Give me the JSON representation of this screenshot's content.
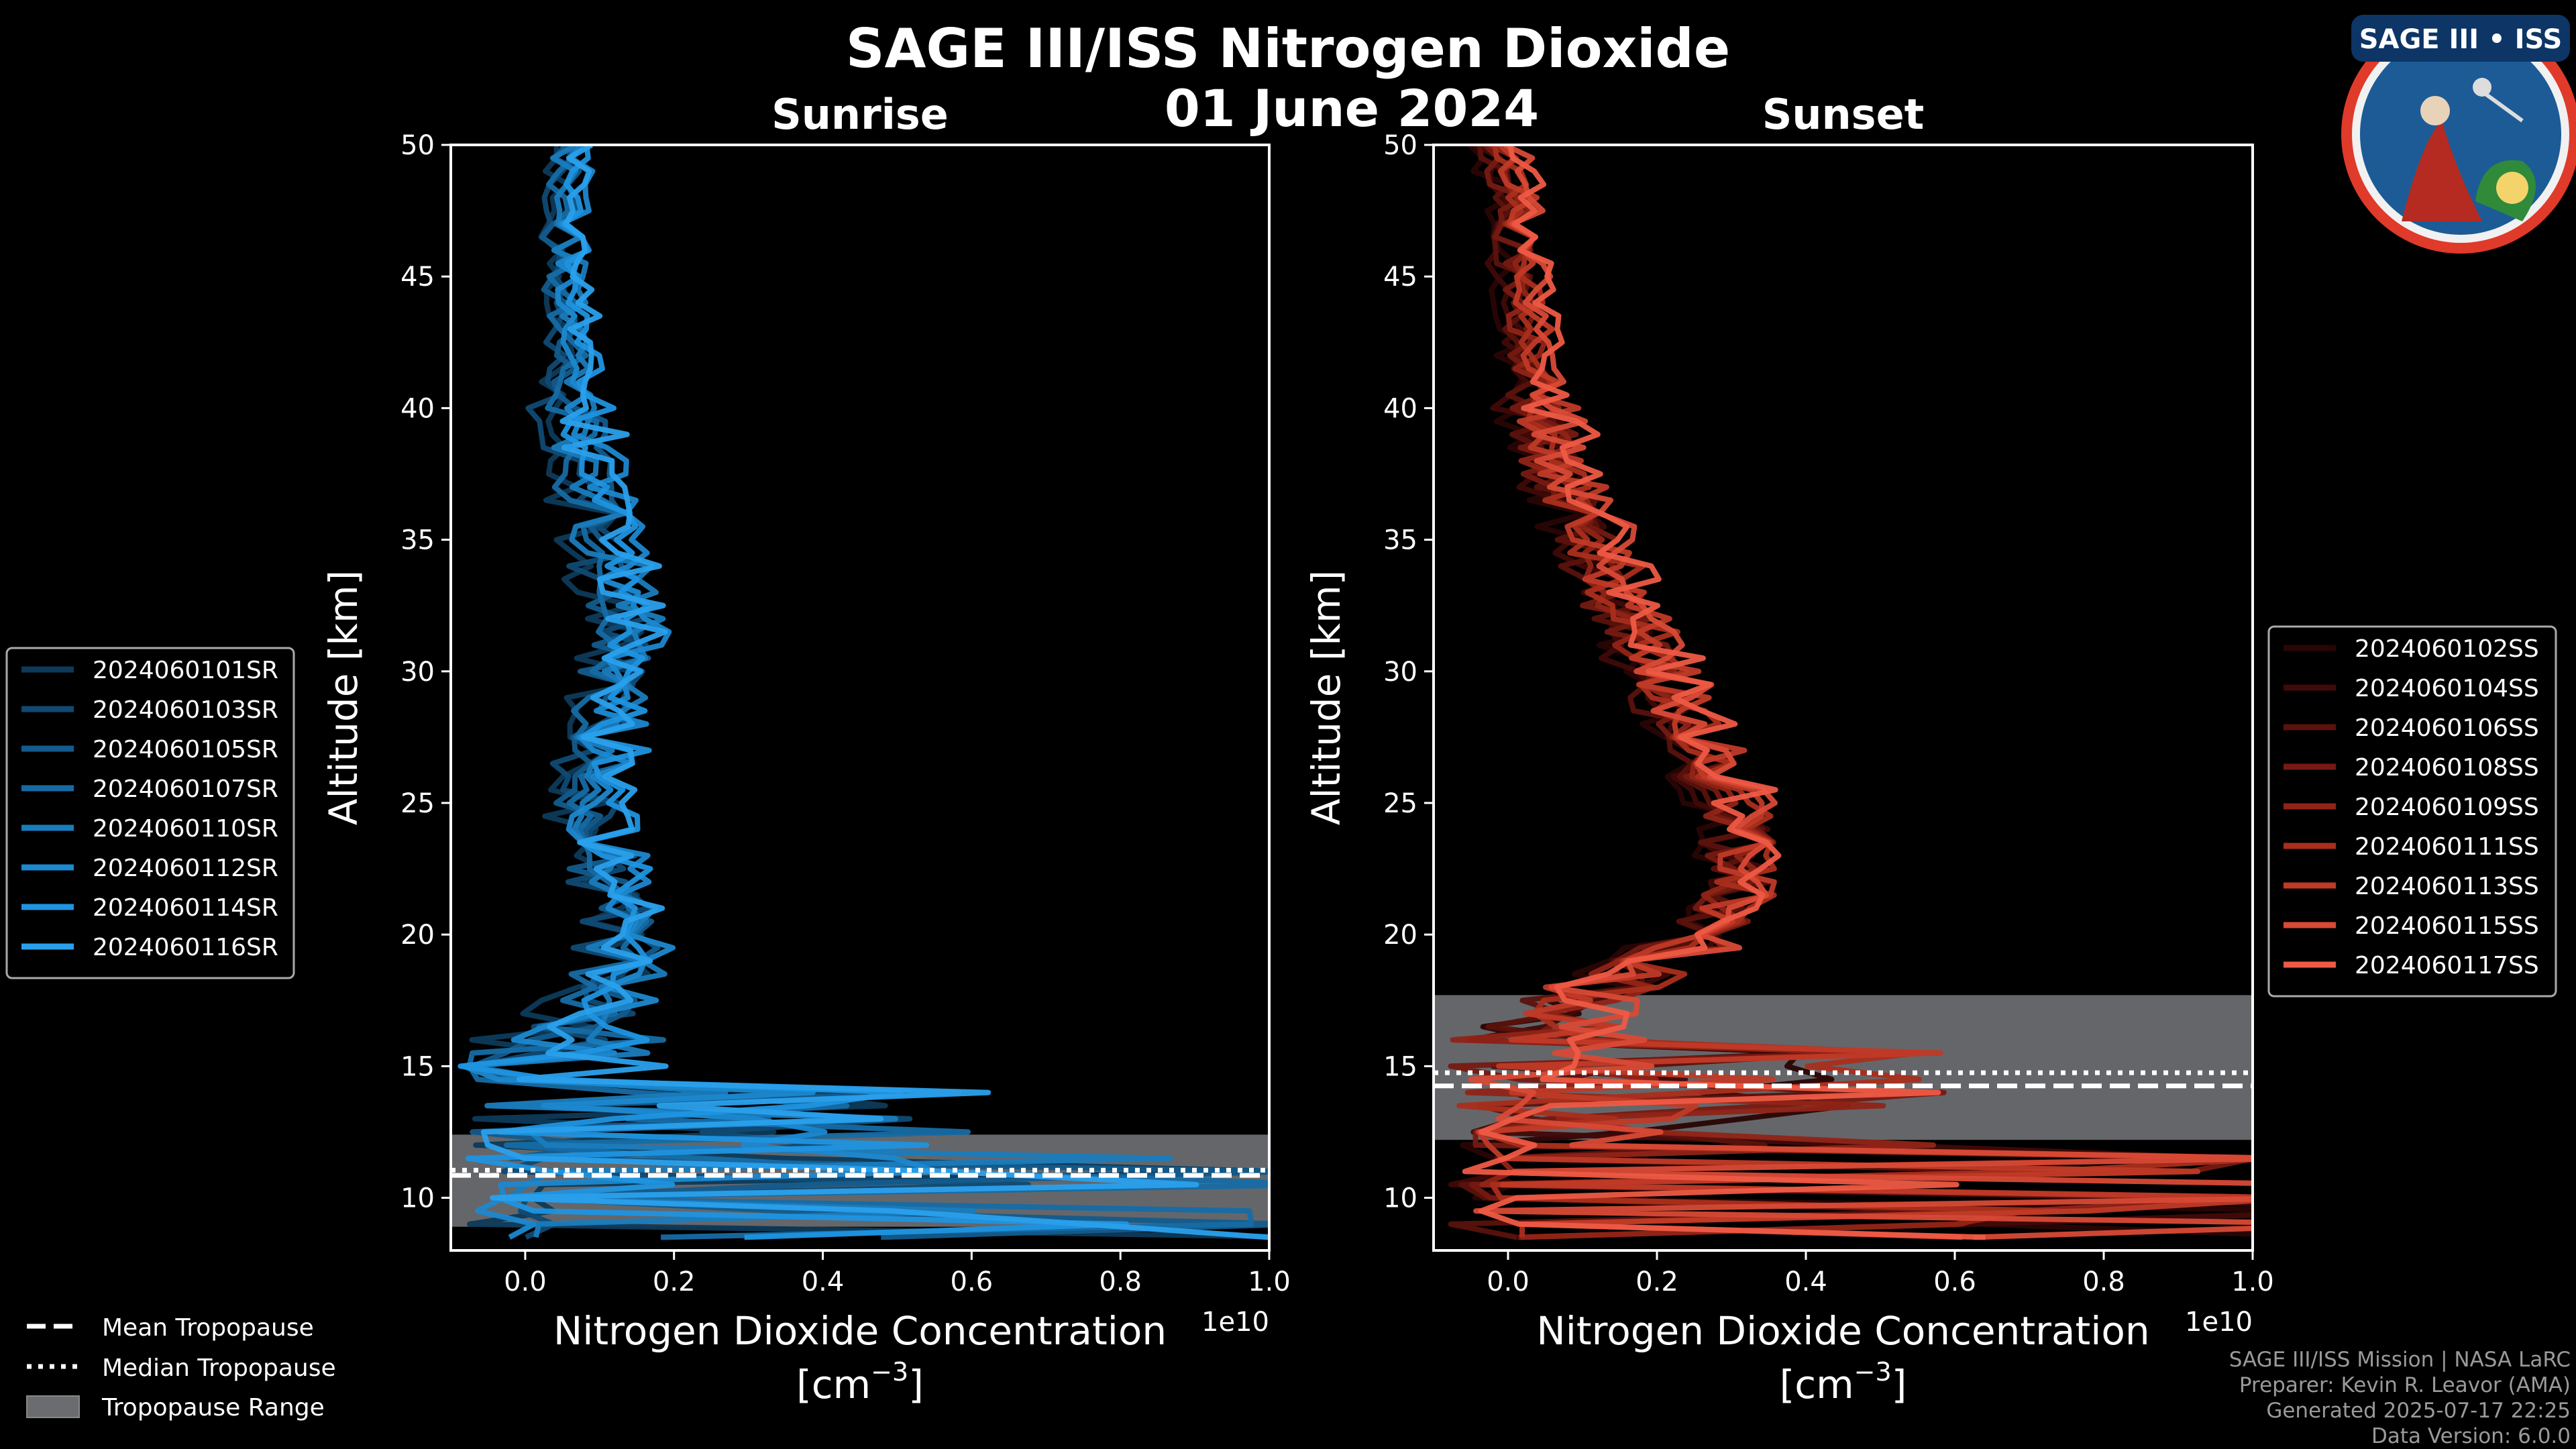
{
  "title": "SAGE III/ISS Nitrogen Dioxide",
  "date": "01 June 2024",
  "logo": {
    "text": "SAGE III • ISS",
    "icon": "mission-patch"
  },
  "footer": {
    "line1": "SAGE III/ISS Mission | NASA LaRC",
    "line2": "Preparer: Kevin R. Leavor (AMA)",
    "line3": "Generated 2025-07-17 22:25",
    "line4": "Data Version: 6.0.0"
  },
  "tropopause_legend": [
    {
      "label": "Mean Tropopause",
      "style": "dashed"
    },
    {
      "label": "Median Tropopause",
      "style": "dotted"
    },
    {
      "label": "Tropopause Range",
      "style": "patch"
    }
  ],
  "chart_data": [
    {
      "type": "line",
      "title": "Sunrise",
      "xlabel": "Nitrogen Dioxide Concentration",
      "xlabel_unit": "[cm",
      "xlabel_exp": "−3",
      "xlabel_close": "]",
      "x_multiplier": "1e10",
      "ylabel": "Altitude [km]",
      "xlim": [
        -0.1,
        1.0
      ],
      "ylim": [
        8,
        50
      ],
      "xticks": [
        "0.0",
        "0.2",
        "0.4",
        "0.6",
        "0.8",
        "1.0"
      ],
      "yticks": [
        "10",
        "15",
        "20",
        "25",
        "30",
        "35",
        "40",
        "45",
        "50"
      ],
      "colors": [
        "#0d3a5a",
        "#104a73",
        "#135b8c",
        "#166ba5",
        "#1a7cbd",
        "#1c88cf",
        "#1f94e0",
        "#2aa0ec"
      ],
      "tropopause": {
        "range": [
          8.9,
          12.4
        ],
        "mean": 10.85,
        "median": 11.05
      },
      "legend_position": "outside-left",
      "profile_x": [
        0.06,
        0.06,
        0.07,
        0.1,
        0.12,
        0.14,
        0.13,
        0.11,
        0.1,
        0.1,
        0.12,
        0.15,
        0.12,
        0.06,
        0.02,
        0.02
      ],
      "profile_y": [
        50,
        45,
        40,
        36,
        34,
        32,
        30,
        28,
        26,
        24,
        22,
        20,
        18,
        16,
        14,
        8.5
      ],
      "series": [
        {
          "name": "2024060101SR"
        },
        {
          "name": "2024060103SR"
        },
        {
          "name": "2024060105SR"
        },
        {
          "name": "2024060107SR"
        },
        {
          "name": "2024060110SR"
        },
        {
          "name": "2024060112SR"
        },
        {
          "name": "2024060114SR"
        },
        {
          "name": "2024060116SR"
        }
      ]
    },
    {
      "type": "line",
      "title": "Sunset",
      "xlabel": "Nitrogen Dioxide Concentration",
      "xlabel_unit": "[cm",
      "xlabel_exp": "−3",
      "xlabel_close": "]",
      "x_multiplier": "1e10",
      "ylabel": "Altitude [km]",
      "xlim": [
        -0.1,
        1.0
      ],
      "ylim": [
        8,
        50
      ],
      "xticks": [
        "0.0",
        "0.2",
        "0.4",
        "0.6",
        "0.8",
        "1.0"
      ],
      "yticks": [
        "10",
        "15",
        "20",
        "25",
        "30",
        "35",
        "40",
        "45",
        "50"
      ],
      "colors": [
        "#2a0505",
        "#400a08",
        "#5a120c",
        "#751a12",
        "#902417",
        "#aa2e1c",
        "#c03a27",
        "#d84a36",
        "#ee5a44"
      ],
      "tropopause": {
        "range": [
          12.2,
          17.7
        ],
        "mean": 14.25,
        "median": 14.75
      },
      "legend_position": "outside-right",
      "profile_x": [
        0.0,
        0.02,
        0.04,
        0.1,
        0.15,
        0.2,
        0.24,
        0.28,
        0.32,
        0.32,
        0.28,
        0.2,
        0.12,
        0.08,
        0.05
      ],
      "profile_y": [
        50,
        45,
        40,
        36,
        33,
        30,
        28,
        26,
        24,
        22,
        20,
        19,
        18,
        17,
        16
      ],
      "series": [
        {
          "name": "2024060102SS"
        },
        {
          "name": "2024060104SS"
        },
        {
          "name": "2024060106SS"
        },
        {
          "name": "2024060108SS"
        },
        {
          "name": "2024060109SS"
        },
        {
          "name": "2024060111SS"
        },
        {
          "name": "2024060113SS"
        },
        {
          "name": "2024060115SS"
        },
        {
          "name": "2024060117SS"
        }
      ]
    }
  ]
}
